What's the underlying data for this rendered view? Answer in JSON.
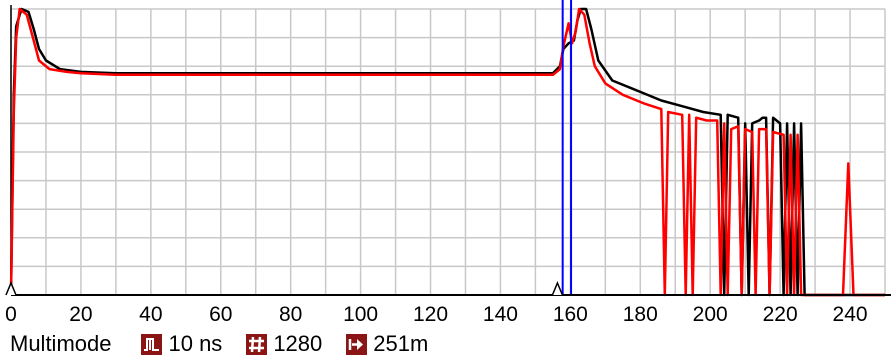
{
  "chart_data": {
    "type": "line",
    "xlabel": "",
    "ylabel": "",
    "xlim": [
      0,
      250
    ],
    "ylim": [
      0,
      100
    ],
    "x_ticks": [
      "0",
      "20",
      "40",
      "60",
      "80",
      "100",
      "120",
      "140",
      "160",
      "180",
      "200",
      "220",
      "240"
    ],
    "grid": true,
    "cursor_lines_x": [
      157.8,
      160.2
    ],
    "cursor_color": "#0000ff",
    "series": [
      {
        "color": "#000000",
        "points": [
          [
            0,
            0
          ],
          [
            0.8,
            70
          ],
          [
            1.5,
            94
          ],
          [
            3,
            100
          ],
          [
            5,
            99
          ],
          [
            6.5,
            93
          ],
          [
            8,
            86
          ],
          [
            10,
            82
          ],
          [
            14,
            79
          ],
          [
            20,
            78
          ],
          [
            30,
            77.5
          ],
          [
            60,
            77.5
          ],
          [
            100,
            77.5
          ],
          [
            140,
            77.5
          ],
          [
            155,
            77.5
          ],
          [
            157,
            80
          ],
          [
            158,
            86
          ],
          [
            159.5,
            88
          ],
          [
            161,
            89
          ],
          [
            162,
            96
          ],
          [
            163,
            100
          ],
          [
            164.5,
            100
          ],
          [
            166,
            93
          ],
          [
            168,
            82
          ],
          [
            172,
            75
          ],
          [
            180,
            71
          ],
          [
            186,
            68
          ],
          [
            192,
            66
          ],
          [
            198,
            64
          ],
          [
            203,
            63
          ],
          [
            204,
            0
          ],
          [
            205,
            63
          ],
          [
            208,
            62
          ],
          [
            209,
            0
          ],
          [
            210,
            60
          ],
          [
            211,
            0
          ],
          [
            212,
            60
          ],
          [
            214,
            61
          ],
          [
            215,
            62
          ],
          [
            216,
            62
          ],
          [
            217,
            0
          ],
          [
            218,
            62
          ],
          [
            220,
            60
          ],
          [
            221,
            0
          ],
          [
            222,
            60
          ],
          [
            223,
            0
          ],
          [
            224,
            60
          ],
          [
            225,
            0
          ],
          [
            226,
            60
          ],
          [
            227,
            0
          ],
          [
            228,
            0
          ],
          [
            250,
            0
          ]
        ]
      },
      {
        "color": "#ff0000",
        "points": [
          [
            0,
            0
          ],
          [
            0.8,
            64
          ],
          [
            1.5,
            90
          ],
          [
            2.5,
            100
          ],
          [
            4.5,
            98
          ],
          [
            6.5,
            89
          ],
          [
            8,
            82
          ],
          [
            11,
            79
          ],
          [
            16,
            78
          ],
          [
            20,
            77.5
          ],
          [
            30,
            77
          ],
          [
            60,
            77
          ],
          [
            100,
            77
          ],
          [
            140,
            77
          ],
          [
            155,
            77
          ],
          [
            157,
            79
          ],
          [
            158,
            87
          ],
          [
            159.5,
            95
          ],
          [
            160.5,
            88
          ],
          [
            161.5,
            92
          ],
          [
            162.5,
            100
          ],
          [
            164,
            98
          ],
          [
            165.5,
            88
          ],
          [
            167,
            80
          ],
          [
            170,
            74
          ],
          [
            175,
            70
          ],
          [
            181,
            67
          ],
          [
            186,
            65
          ],
          [
            187,
            0
          ],
          [
            188,
            64
          ],
          [
            192,
            63
          ],
          [
            193,
            0
          ],
          [
            194,
            63
          ],
          [
            195,
            0
          ],
          [
            196,
            62
          ],
          [
            199,
            61
          ],
          [
            202,
            61
          ],
          [
            203,
            0
          ],
          [
            204,
            60
          ],
          [
            205,
            0
          ],
          [
            206,
            58
          ],
          [
            208,
            59
          ],
          [
            209,
            0
          ],
          [
            210,
            58
          ],
          [
            212,
            57
          ],
          [
            213,
            0
          ],
          [
            214,
            58
          ],
          [
            216,
            58
          ],
          [
            217,
            0
          ],
          [
            218,
            57
          ],
          [
            221,
            56
          ],
          [
            222,
            0
          ],
          [
            223,
            56
          ],
          [
            224,
            0
          ],
          [
            225,
            56
          ],
          [
            226,
            0
          ],
          [
            227,
            0
          ],
          [
            238,
            0
          ],
          [
            239.5,
            46
          ],
          [
            241,
            0
          ],
          [
            250,
            0
          ]
        ]
      }
    ]
  },
  "status_bar": {
    "mode": "Multimode",
    "pulse_width": "10 ns",
    "averages": "1280",
    "range": "251m"
  },
  "icons": {
    "pulse": "pulse-width-icon",
    "averages": "averages-hash-icon",
    "range": "range-arrow-icon"
  },
  "colors": {
    "icon_bg": "#8b1414",
    "grid": "#c8c8c8",
    "trace_black": "#000000",
    "trace_red": "#ff0000",
    "cursor": "#0000ff"
  }
}
